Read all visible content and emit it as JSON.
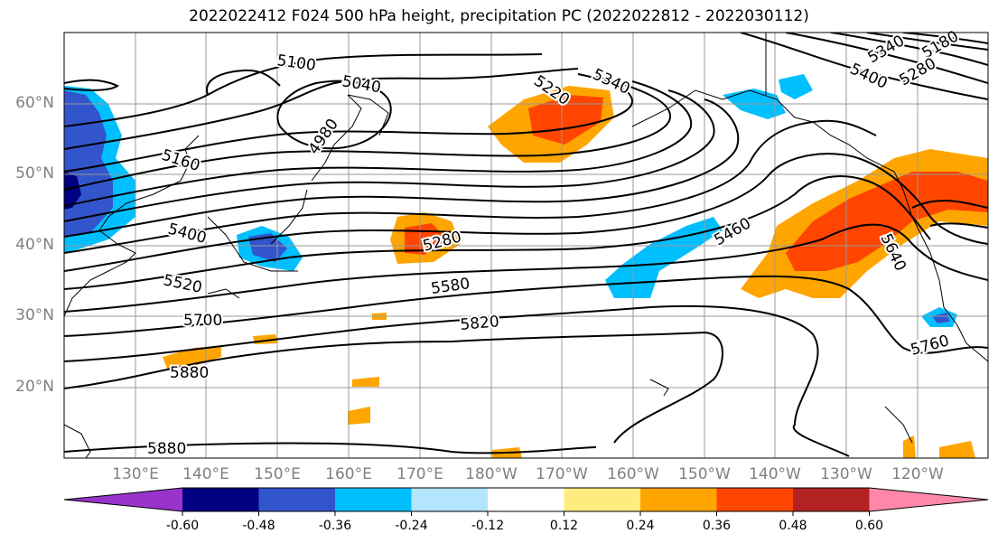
{
  "title": "2022022412 F024 500 hPa height, precipitation PC (2022022812 - 2022030112)",
  "lat_labels": [
    "60°N",
    "50°N",
    "40°N",
    "30°N",
    "20°N"
  ],
  "lon_labels": [
    "130°E",
    "140°E",
    "150°E",
    "160°E",
    "170°E",
    "180°W",
    "170°W",
    "160°W",
    "150°W",
    "140°W",
    "130°W",
    "120°W"
  ],
  "contour_labels": [
    "5100",
    "5040",
    "4980",
    "5160",
    "5220",
    "5340",
    "5400",
    "5340",
    "5280",
    "5180",
    "5400",
    "5280",
    "5460",
    "5640",
    "5520",
    "5580",
    "5700",
    "5820",
    "5760",
    "5880",
    "5880"
  ],
  "colorbar": {
    "colors": [
      "#9933cc",
      "#000080",
      "#3355cc",
      "#00bfff",
      "#b3e5fc",
      "#ffffff",
      "#ffeb80",
      "#ffa500",
      "#ff4500",
      "#b22222",
      "#ff88aa"
    ],
    "tick_labels": [
      "-0.60",
      "-0.48",
      "-0.36",
      "-0.24",
      "-0.12",
      "0.12",
      "0.24",
      "0.36",
      "0.48",
      "0.60"
    ]
  }
}
